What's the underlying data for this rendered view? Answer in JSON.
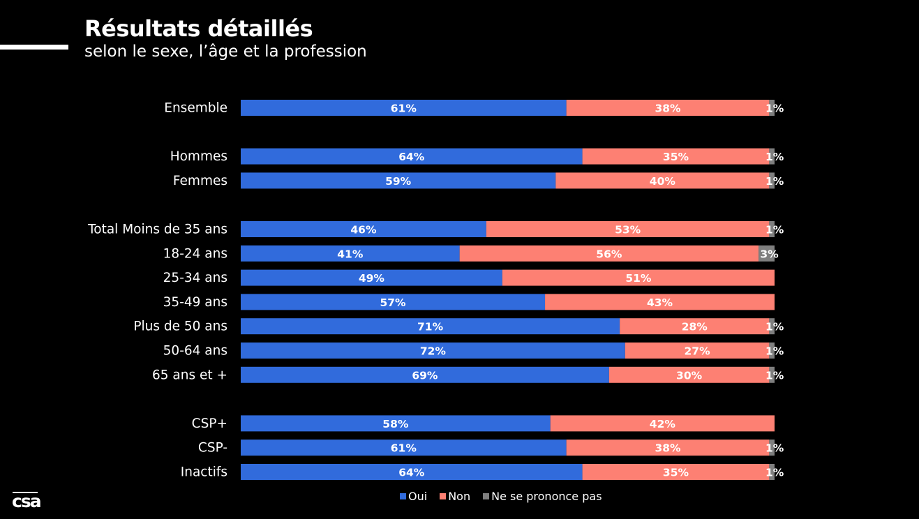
{
  "header": {
    "title": "Résultats détaillés",
    "subtitle": "selon le sexe, l’âge et la profession"
  },
  "logo": {
    "text": "csa"
  },
  "chart_data": {
    "type": "bar",
    "orientation": "horizontal",
    "stacked": true,
    "title": "Résultats détaillés",
    "subtitle": "selon le sexe, l’âge et la profession",
    "xlabel": "",
    "ylabel": "",
    "xlim": [
      0,
      100
    ],
    "grid": false,
    "legend_position": "bottom",
    "categories": [
      "Ensemble",
      "Hommes",
      "Femmes",
      "Total Moins de 35 ans",
      "18-24 ans",
      "25-34 ans",
      "35-49 ans",
      "Plus de 50 ans",
      "50-64 ans",
      "65 ans et +",
      "CSP+",
      "CSP-",
      "Inactifs"
    ],
    "groups": [
      [
        0
      ],
      [
        1,
        2
      ],
      [
        3,
        4,
        5,
        6,
        7,
        8,
        9
      ],
      [
        10,
        11,
        12
      ]
    ],
    "series": [
      {
        "name": "Oui",
        "color": "#316bdc",
        "values": [
          61,
          64,
          59,
          46,
          41,
          49,
          57,
          71,
          72,
          69,
          58,
          61,
          64
        ]
      },
      {
        "name": "Non",
        "color": "#fd8073",
        "values": [
          38,
          35,
          40,
          53,
          56,
          51,
          43,
          28,
          27,
          30,
          42,
          38,
          35
        ]
      },
      {
        "name": "Ne se prononce pas",
        "color": "#7f7f7f",
        "values": [
          1,
          1,
          1,
          1,
          3,
          0,
          0,
          1,
          1,
          1,
          0,
          1,
          1
        ]
      }
    ]
  }
}
